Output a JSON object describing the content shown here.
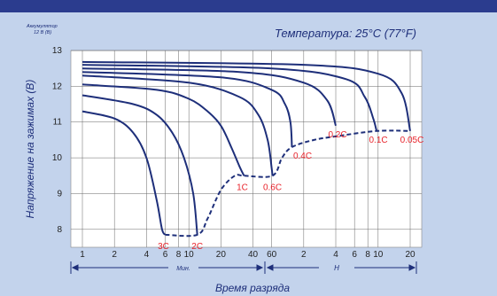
{
  "chart_data": {
    "type": "line",
    "title": "Температура: 25°C (77°F)",
    "subtitle_line1": "Аккумулятор",
    "subtitle_line2": "12 В (В)",
    "ylabel": "Напряжение на зажимах (В)",
    "xlabel": "Время разряда",
    "x_unit_minutes": "Мин.",
    "x_unit_hours": "Н",
    "ylim": [
      7.5,
      13
    ],
    "y_ticks": [
      8,
      9,
      10,
      11,
      12,
      13
    ],
    "y_tick_labels": [
      "8",
      "9",
      "10",
      "11",
      "12",
      "13"
    ],
    "x_scale": "log",
    "x_ticks_minutes": [
      1,
      2,
      4,
      6,
      8,
      10,
      20,
      40,
      60,
      120,
      240,
      360,
      480,
      600,
      1200
    ],
    "x_tick_labels": [
      "1",
      "2",
      "4",
      "6",
      "8",
      "10",
      "20",
      "40",
      "60",
      "2",
      "4",
      "6",
      "8",
      "10",
      "20"
    ],
    "series": [
      {
        "name": "3C",
        "values": [
          [
            1,
            11.3
          ],
          [
            2,
            11.1
          ],
          [
            3,
            10.7
          ],
          [
            4,
            10.0
          ],
          [
            5,
            8.8
          ],
          [
            5.6,
            8.0
          ],
          [
            6,
            7.85
          ]
        ]
      },
      {
        "name": "2C",
        "values": [
          [
            1,
            11.75
          ],
          [
            3,
            11.5
          ],
          [
            5,
            11.2
          ],
          [
            7,
            10.7
          ],
          [
            9,
            10.0
          ],
          [
            11,
            9.0
          ],
          [
            12,
            7.85
          ]
        ]
      },
      {
        "name": "1C",
        "values": [
          [
            1,
            12.05
          ],
          [
            5,
            11.9
          ],
          [
            10,
            11.65
          ],
          [
            15,
            11.3
          ],
          [
            20,
            10.9
          ],
          [
            25,
            10.3
          ],
          [
            30,
            9.75
          ],
          [
            33,
            9.5
          ]
        ]
      },
      {
        "name": "0.6C",
        "values": [
          [
            1,
            12.3
          ],
          [
            10,
            12.1
          ],
          [
            30,
            11.7
          ],
          [
            45,
            11.2
          ],
          [
            55,
            10.5
          ],
          [
            60,
            9.7
          ],
          [
            61,
            9.5
          ]
        ]
      },
      {
        "name": "0.4C",
        "values": [
          [
            1,
            12.4
          ],
          [
            20,
            12.25
          ],
          [
            60,
            11.9
          ],
          [
            80,
            11.5
          ],
          [
            90,
            11.0
          ],
          [
            93,
            10.3
          ]
        ]
      },
      {
        "name": "0.2C",
        "values": [
          [
            1,
            12.5
          ],
          [
            30,
            12.4
          ],
          [
            120,
            12.1
          ],
          [
            200,
            11.6
          ],
          [
            240,
            10.9
          ]
        ]
      },
      {
        "name": "0.1C",
        "values": [
          [
            1,
            12.6
          ],
          [
            60,
            12.5
          ],
          [
            300,
            12.2
          ],
          [
            450,
            11.7
          ],
          [
            540,
            11.1
          ],
          [
            580,
            10.75
          ]
        ]
      },
      {
        "name": "0.05C",
        "values": [
          [
            1,
            12.68
          ],
          [
            120,
            12.6
          ],
          [
            600,
            12.35
          ],
          [
            1000,
            11.8
          ],
          [
            1200,
            10.75
          ]
        ]
      }
    ],
    "cutoff_curve": [
      [
        6,
        7.85
      ],
      [
        12,
        7.85
      ],
      [
        15,
        8.3
      ],
      [
        20,
        9.1
      ],
      [
        27,
        9.5
      ],
      [
        33,
        9.5
      ],
      [
        61,
        9.5
      ],
      [
        75,
        10.0
      ],
      [
        93,
        10.3
      ],
      [
        150,
        10.5
      ],
      [
        240,
        10.6
      ],
      [
        580,
        10.75
      ],
      [
        1200,
        10.75
      ]
    ],
    "grid": true
  },
  "colors": {
    "background": "#c3d3ec",
    "top_bar": "#2b3c8e",
    "plot_area": "#ffffff",
    "curve": "#1e2f7a",
    "label_red": "#e8242c",
    "text": "#1e2f7a"
  }
}
